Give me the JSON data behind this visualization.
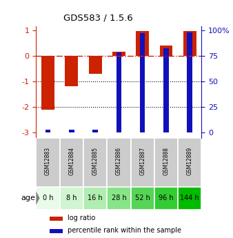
{
  "title": "GDS583 / 1.5.6",
  "samples": [
    "GSM12883",
    "GSM12884",
    "GSM12885",
    "GSM12886",
    "GSM12887",
    "GSM12888",
    "GSM12889"
  ],
  "age_labels": [
    "0 h",
    "8 h",
    "16 h",
    "28 h",
    "52 h",
    "96 h",
    "144 h"
  ],
  "log_ratios": [
    -2.1,
    -1.2,
    -0.7,
    0.15,
    0.95,
    0.4,
    0.95
  ],
  "percentile_ranks": [
    3,
    3,
    3,
    78,
    97,
    82,
    98
  ],
  "bar_color_red": "#cc2200",
  "bar_color_blue": "#1111bb",
  "ylim_left": [
    -3.2,
    1.15
  ],
  "ylim_right": [
    -1.066666,
    25.5
  ],
  "yticks_left": [
    -3,
    -2,
    -1,
    0,
    1
  ],
  "yticks_right": [
    0,
    25,
    50,
    75,
    100
  ],
  "yticklabels_left": [
    "-3",
    "-2",
    "-1",
    "0",
    "1"
  ],
  "yticklabels_right": [
    "0",
    "25",
    "50",
    "75",
    "100%"
  ],
  "hline_y": 0,
  "dotted_lines": [
    -1,
    -2
  ],
  "age_colors": [
    "#e8fbe8",
    "#d0f5d0",
    "#b0edb0",
    "#88e488",
    "#55d455",
    "#33cc33",
    "#00bb00"
  ],
  "sample_bg_color": "#cccccc",
  "legend_label_red": "log ratio",
  "legend_label_blue": "percentile rank within the sample",
  "age_group_label": "age",
  "left_label_color": "#cc2200",
  "right_label_color": "#1111bb"
}
